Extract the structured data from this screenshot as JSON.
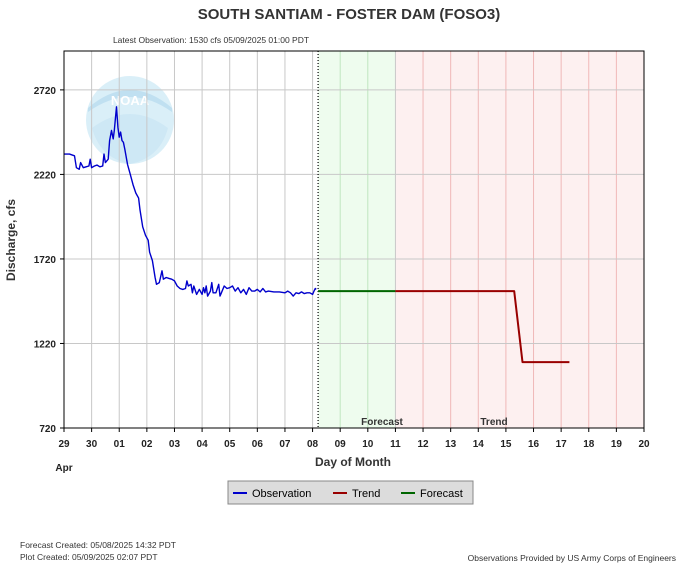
{
  "chart_data": {
    "type": "line",
    "title": "SOUTH SANTIAM - FOSTER DAM  (FOSO3)",
    "subtitle": "Latest Observation: 1530 cfs 05/09/2025 01:00 PDT",
    "xlabel": "Day of Month",
    "ylabel": "Discharge, cfs",
    "x_tick_labels": [
      "29",
      "30",
      "01",
      "02",
      "03",
      "04",
      "05",
      "06",
      "07",
      "08",
      "09",
      "10",
      "11",
      "12",
      "13",
      "14",
      "15",
      "16",
      "17",
      "18",
      "19",
      "20"
    ],
    "month_label": "Apr",
    "y_ticks": [
      720,
      1220,
      1720,
      2220,
      2720
    ],
    "ylim": [
      720,
      2950
    ],
    "zone_labels": {
      "forecast": "Forecast",
      "trend": "Trend"
    },
    "grid": true,
    "legend_position": "bottom-center",
    "series": [
      {
        "name": "Observation",
        "color": "#0000cc",
        "points": [
          [
            0.0,
            2340
          ],
          [
            0.2,
            2340
          ],
          [
            0.38,
            2330
          ],
          [
            0.45,
            2260
          ],
          [
            0.55,
            2250
          ],
          [
            0.6,
            2290
          ],
          [
            0.7,
            2260
          ],
          [
            0.8,
            2265
          ],
          [
            0.9,
            2270
          ],
          [
            0.95,
            2310
          ],
          [
            1.0,
            2260
          ],
          [
            1.1,
            2270
          ],
          [
            1.2,
            2275
          ],
          [
            1.3,
            2265
          ],
          [
            1.4,
            2270
          ],
          [
            1.45,
            2340
          ],
          [
            1.5,
            2290
          ],
          [
            1.6,
            2310
          ],
          [
            1.65,
            2420
          ],
          [
            1.72,
            2480
          ],
          [
            1.78,
            2430
          ],
          [
            1.82,
            2480
          ],
          [
            1.86,
            2550
          ],
          [
            1.9,
            2620
          ],
          [
            1.95,
            2500
          ],
          [
            2.0,
            2440
          ],
          [
            2.05,
            2470
          ],
          [
            2.1,
            2420
          ],
          [
            2.15,
            2410
          ],
          [
            2.2,
            2370
          ],
          [
            2.3,
            2280
          ],
          [
            2.4,
            2220
          ],
          [
            2.5,
            2160
          ],
          [
            2.6,
            2110
          ],
          [
            2.7,
            2080
          ],
          [
            2.75,
            2010
          ],
          [
            2.85,
            1910
          ],
          [
            2.95,
            1860
          ],
          [
            3.05,
            1830
          ],
          [
            3.1,
            1760
          ],
          [
            3.2,
            1710
          ],
          [
            3.3,
            1610
          ],
          [
            3.35,
            1570
          ],
          [
            3.45,
            1580
          ],
          [
            3.55,
            1650
          ],
          [
            3.6,
            1600
          ],
          [
            3.7,
            1610
          ],
          [
            3.8,
            1605
          ],
          [
            3.9,
            1600
          ],
          [
            4.0,
            1590
          ],
          [
            4.1,
            1560
          ],
          [
            4.2,
            1545
          ],
          [
            4.3,
            1540
          ],
          [
            4.4,
            1545
          ],
          [
            4.45,
            1590
          ],
          [
            4.5,
            1560
          ],
          [
            4.6,
            1570
          ],
          [
            4.65,
            1520
          ],
          [
            4.7,
            1560
          ],
          [
            4.8,
            1510
          ],
          [
            4.9,
            1540
          ],
          [
            5.0,
            1510
          ],
          [
            5.05,
            1550
          ],
          [
            5.1,
            1520
          ],
          [
            5.15,
            1560
          ],
          [
            5.2,
            1500
          ],
          [
            5.3,
            1530
          ],
          [
            5.35,
            1580
          ],
          [
            5.4,
            1520
          ],
          [
            5.5,
            1520
          ],
          [
            5.6,
            1570
          ],
          [
            5.65,
            1500
          ],
          [
            5.7,
            1520
          ],
          [
            5.8,
            1560
          ],
          [
            5.9,
            1545
          ],
          [
            6.0,
            1550
          ],
          [
            6.1,
            1560
          ],
          [
            6.2,
            1530
          ],
          [
            6.3,
            1550
          ],
          [
            6.4,
            1520
          ],
          [
            6.5,
            1540
          ],
          [
            6.6,
            1510
          ],
          [
            6.7,
            1550
          ],
          [
            6.8,
            1530
          ],
          [
            6.9,
            1530
          ],
          [
            7.0,
            1540
          ],
          [
            7.1,
            1525
          ],
          [
            7.2,
            1545
          ],
          [
            7.3,
            1525
          ],
          [
            7.4,
            1530
          ],
          [
            7.6,
            1525
          ],
          [
            7.8,
            1525
          ],
          [
            8.0,
            1520
          ],
          [
            8.1,
            1530
          ],
          [
            8.2,
            1520
          ],
          [
            8.3,
            1500
          ],
          [
            8.4,
            1520
          ],
          [
            8.5,
            1515
          ],
          [
            8.6,
            1525
          ],
          [
            8.7,
            1515
          ],
          [
            8.8,
            1520
          ],
          [
            8.9,
            1520
          ],
          [
            9.0,
            1510
          ],
          [
            9.05,
            1530
          ],
          [
            9.1,
            1545
          ],
          [
            9.13,
            1540
          ]
        ]
      },
      {
        "name": "Forecast",
        "color": "#006600",
        "points": [
          [
            9.2,
            1530
          ],
          [
            12.0,
            1530
          ]
        ]
      },
      {
        "name": "Trend",
        "color": "#990000",
        "points": [
          [
            12.0,
            1530
          ],
          [
            16.3,
            1530
          ],
          [
            16.6,
            1110
          ],
          [
            18.3,
            1110
          ]
        ]
      }
    ],
    "legend": [
      "Observation",
      "Trend",
      "Forecast"
    ]
  },
  "footer": {
    "forecast_created": "Forecast Created: 05/08/2025 14:32 PDT",
    "plot_created": "Plot Created: 05/09/2025 02:07 PDT",
    "provider": "Observations Provided by US Army Corps of Engineers"
  },
  "logo": {
    "text": "NOAA"
  },
  "colors": {
    "forecast_zone": "#eefcee",
    "trend_zone": "#fdf0f0",
    "grid": "#c8c8c8",
    "legend_bg": "#dcdcdc"
  }
}
